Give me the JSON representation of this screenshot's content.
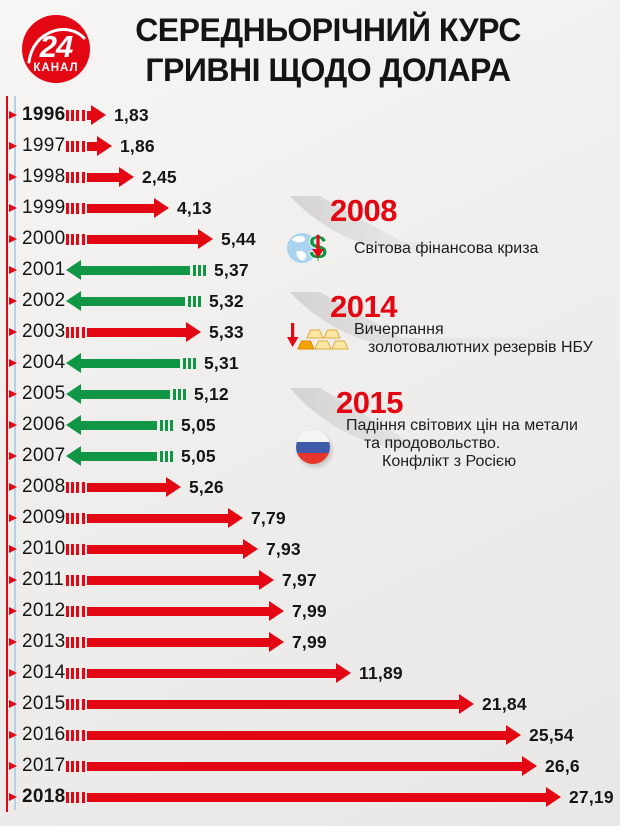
{
  "logo": {
    "number": "24",
    "name": "КАНАЛ"
  },
  "title": {
    "line1": "СЕРЕДНЬОРІЧНИЙ КУРС",
    "line2": "ГРИВНІ ЩОДО ДОЛАРА"
  },
  "colors": {
    "rise_red": "#e30613",
    "fall_green": "#119646",
    "rail_blue": "#b7cfe7",
    "text_dark": "#161616",
    "swoosh_gray": "#d2d1cf",
    "background": "#efeeec"
  },
  "chart_data": {
    "type": "bar",
    "orientation": "horizontal",
    "title": "СЕРЕДНЬОРІЧНИЙ КУРС ГРИВНІ ЩОДО ДОЛАРА",
    "unit": "UAH per USD",
    "value_range": [
      0,
      27.19
    ],
    "legend": "red arrow right = rate rose, green arrow left = rate fell",
    "rows": [
      {
        "year": "1996",
        "display": "1,83",
        "value": 1.83,
        "dir": "rise",
        "len": 40,
        "bold": true
      },
      {
        "year": "1997",
        "display": "1,86",
        "value": 1.86,
        "dir": "rise",
        "len": 46,
        "bold": false
      },
      {
        "year": "1998",
        "display": "2,45",
        "value": 2.45,
        "dir": "rise",
        "len": 68,
        "bold": false
      },
      {
        "year": "1999",
        "display": "4,13",
        "value": 4.13,
        "dir": "rise",
        "len": 103,
        "bold": false
      },
      {
        "year": "2000",
        "display": "5,44",
        "value": 5.44,
        "dir": "rise",
        "len": 147,
        "bold": false
      },
      {
        "year": "2001",
        "display": "5,37",
        "value": 5.37,
        "dir": "fall",
        "len": 140,
        "bold": false
      },
      {
        "year": "2002",
        "display": "5,32",
        "value": 5.32,
        "dir": "fall",
        "len": 135,
        "bold": false
      },
      {
        "year": "2003",
        "display": "5,33",
        "value": 5.33,
        "dir": "rise",
        "len": 135,
        "bold": false
      },
      {
        "year": "2004",
        "display": "5,31",
        "value": 5.31,
        "dir": "fall",
        "len": 130,
        "bold": false
      },
      {
        "year": "2005",
        "display": "5,12",
        "value": 5.12,
        "dir": "fall",
        "len": 120,
        "bold": false
      },
      {
        "year": "2006",
        "display": "5,05",
        "value": 5.05,
        "dir": "fall",
        "len": 107,
        "bold": false
      },
      {
        "year": "2007",
        "display": "5,05",
        "value": 5.05,
        "dir": "fall",
        "len": 107,
        "bold": false
      },
      {
        "year": "2008",
        "display": "5,26",
        "value": 5.26,
        "dir": "rise",
        "len": 115,
        "bold": false
      },
      {
        "year": "2009",
        "display": "7,79",
        "value": 7.79,
        "dir": "rise",
        "len": 177,
        "bold": false
      },
      {
        "year": "2010",
        "display": "7,93",
        "value": 7.93,
        "dir": "rise",
        "len": 192,
        "bold": false
      },
      {
        "year": "2011",
        "display": "7,97",
        "value": 7.97,
        "dir": "rise",
        "len": 208,
        "bold": false
      },
      {
        "year": "2012",
        "display": "7,99",
        "value": 7.99,
        "dir": "rise",
        "len": 218,
        "bold": false
      },
      {
        "year": "2013",
        "display": "7,99",
        "value": 7.99,
        "dir": "rise",
        "len": 218,
        "bold": false
      },
      {
        "year": "2014",
        "display": "11,89",
        "value": 11.89,
        "dir": "rise",
        "len": 285,
        "bold": false
      },
      {
        "year": "2015",
        "display": "21,84",
        "value": 21.84,
        "dir": "rise",
        "len": 408,
        "bold": false
      },
      {
        "year": "2016",
        "display": "25,54",
        "value": 25.54,
        "dir": "rise",
        "len": 455,
        "bold": false
      },
      {
        "year": "2017",
        "display": "26,6",
        "value": 26.6,
        "dir": "rise",
        "len": 471,
        "bold": false
      },
      {
        "year": "2018",
        "display": "27,19",
        "value": 27.19,
        "dir": "rise",
        "len": 495,
        "bold": true
      }
    ]
  },
  "annotations": [
    {
      "year": "2008",
      "icon": "globe-dollar-icon",
      "lines": [
        "Світова фінансова криза"
      ]
    },
    {
      "year": "2014",
      "icon": "gold-bars-icon",
      "lines": [
        "Вичерпання",
        "золотовалютних резервів НБУ"
      ]
    },
    {
      "year": "2015",
      "icon": "russia-flag-icon",
      "lines": [
        "Падіння світових цін на метали",
        "та продовольство.",
        "Конфлікт з Росією"
      ]
    }
  ]
}
